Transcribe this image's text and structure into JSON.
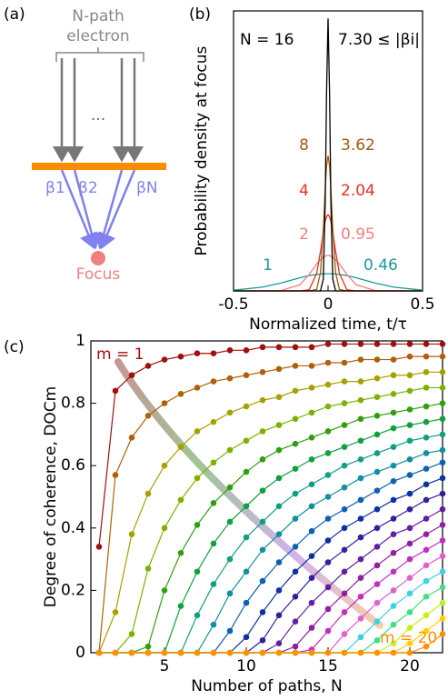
{
  "panel_a": {
    "label": "(a)",
    "title_line1": "N-path",
    "title_line2": "electron",
    "dots": "···",
    "betas": [
      "β1",
      "β2",
      "βN"
    ],
    "focus": "Focus"
  },
  "chart_data": [
    {
      "type": "line",
      "panel_label": "(b)",
      "y_label": "Probability density at focus",
      "x_label": "Normalized time, t/τ",
      "xlim": [
        -0.5,
        0.5
      ],
      "xticks": [
        -0.5,
        0,
        0.5
      ],
      "ylim": [
        0,
        7.5
      ],
      "x": [
        -0.5,
        -0.35,
        -0.25,
        -0.15,
        -0.1,
        -0.06,
        -0.04,
        -0.025,
        -0.015,
        -0.008,
        0,
        0.008,
        0.015,
        0.025,
        0.04,
        0.06,
        0.1,
        0.15,
        0.25,
        0.35,
        0.5
      ],
      "series": [
        {
          "name": "1",
          "annotation": "0.46",
          "color": "#1a9a9a",
          "values": [
            0.02,
            0.1,
            0.21,
            0.35,
            0.41,
            0.44,
            0.45,
            0.46,
            0.46,
            0.46,
            0.46,
            0.46,
            0.46,
            0.46,
            0.45,
            0.44,
            0.41,
            0.35,
            0.21,
            0.1,
            0.02
          ]
        },
        {
          "name": "2",
          "annotation": "0.95",
          "color": "#f08080",
          "values": [
            0,
            0,
            0.01,
            0.16,
            0.44,
            0.72,
            0.84,
            0.9,
            0.93,
            0.95,
            0.95,
            0.95,
            0.93,
            0.9,
            0.84,
            0.72,
            0.44,
            0.16,
            0.01,
            0,
            0
          ]
        },
        {
          "name": "4",
          "annotation": "2.04",
          "color": "#e83020",
          "values": [
            0,
            0,
            0,
            0,
            0.03,
            0.47,
            1.06,
            1.58,
            1.86,
            1.99,
            2.04,
            1.99,
            1.86,
            1.58,
            1.06,
            0.47,
            0.03,
            0,
            0,
            0,
            0
          ]
        },
        {
          "name": "8",
          "annotation": "3.62",
          "color": "#a05a10",
          "values": [
            0,
            0,
            0,
            0,
            0,
            0.04,
            0.49,
            1.66,
            2.73,
            3.34,
            3.62,
            3.34,
            2.73,
            1.66,
            0.49,
            0.04,
            0,
            0,
            0,
            0,
            0
          ]
        },
        {
          "name": "N = 16",
          "annotation": "7.30 ≤ |βi|",
          "color": "#000000",
          "values": [
            0,
            0,
            0,
            0,
            0,
            0,
            0,
            0.32,
            2.37,
            5.3,
            7.3,
            5.3,
            2.37,
            0.32,
            0,
            0,
            0,
            0,
            0,
            0,
            0
          ]
        }
      ]
    },
    {
      "type": "line",
      "panel_label": "(c)",
      "y_label": "Degree of coherence, DOCm",
      "x_label": "Number of paths, N",
      "annotations": [
        "m = 1",
        "m = 20"
      ],
      "xlim": [
        0.5,
        22
      ],
      "xticks": [
        5,
        10,
        15,
        20
      ],
      "ylim": [
        0,
        1
      ],
      "yticks": [
        0,
        0.2,
        0.4,
        0.6,
        0.8,
        1
      ],
      "x": [
        1,
        2,
        3,
        4,
        5,
        6,
        7,
        8,
        9,
        10,
        11,
        12,
        13,
        14,
        15,
        16,
        17,
        18,
        19,
        20,
        21,
        22
      ],
      "series": [
        {
          "color": "#a01010",
          "values": [
            0.34,
            0.84,
            0.89,
            0.92,
            0.94,
            0.95,
            0.96,
            0.96,
            0.97,
            0.97,
            0.98,
            0.98,
            0.98,
            0.98,
            0.99,
            0.99,
            0.99,
            0.99,
            0.99,
            0.99,
            0.99,
            0.99
          ]
        },
        {
          "color": "#b0600a",
          "values": [
            0,
            0.57,
            0.69,
            0.76,
            0.8,
            0.83,
            0.85,
            0.87,
            0.88,
            0.89,
            0.9,
            0.91,
            0.92,
            0.92,
            0.93,
            0.93,
            0.94,
            0.94,
            0.94,
            0.95,
            0.95,
            0.95
          ]
        },
        {
          "color": "#a8a000",
          "values": [
            0,
            0.13,
            0.38,
            0.51,
            0.6,
            0.66,
            0.71,
            0.74,
            0.77,
            0.79,
            0.81,
            0.82,
            0.84,
            0.85,
            0.86,
            0.87,
            0.87,
            0.88,
            0.89,
            0.89,
            0.9,
            0.9
          ]
        },
        {
          "color": "#7fb000",
          "values": [
            0,
            0,
            0.06,
            0.27,
            0.4,
            0.49,
            0.56,
            0.61,
            0.65,
            0.68,
            0.71,
            0.73,
            0.75,
            0.77,
            0.79,
            0.8,
            0.81,
            0.82,
            0.83,
            0.84,
            0.85,
            0.85
          ]
        },
        {
          "color": "#30a010",
          "values": [
            0,
            0,
            0,
            0.02,
            0.2,
            0.32,
            0.41,
            0.48,
            0.53,
            0.58,
            0.62,
            0.65,
            0.67,
            0.69,
            0.71,
            0.73,
            0.75,
            0.76,
            0.77,
            0.78,
            0.79,
            0.8
          ]
        },
        {
          "color": "#10a040",
          "values": [
            0,
            0,
            0,
            0,
            0,
            0.15,
            0.26,
            0.35,
            0.42,
            0.47,
            0.52,
            0.56,
            0.59,
            0.62,
            0.64,
            0.66,
            0.68,
            0.7,
            0.72,
            0.73,
            0.74,
            0.75
          ]
        },
        {
          "color": "#10a080",
          "values": [
            0,
            0,
            0,
            0,
            0,
            0,
            0.12,
            0.22,
            0.3,
            0.37,
            0.42,
            0.47,
            0.51,
            0.54,
            0.57,
            0.6,
            0.62,
            0.64,
            0.66,
            0.68,
            0.69,
            0.7
          ]
        },
        {
          "color": "#1090a0",
          "values": [
            0,
            0,
            0,
            0,
            0,
            0,
            0,
            0.09,
            0.19,
            0.26,
            0.33,
            0.38,
            0.43,
            0.47,
            0.5,
            0.53,
            0.56,
            0.58,
            0.6,
            0.62,
            0.64,
            0.65
          ]
        },
        {
          "color": "#1060b0",
          "values": [
            0,
            0,
            0,
            0,
            0,
            0,
            0,
            0,
            0.07,
            0.16,
            0.23,
            0.29,
            0.34,
            0.39,
            0.43,
            0.46,
            0.49,
            0.52,
            0.55,
            0.57,
            0.59,
            0.61
          ]
        },
        {
          "color": "#1030a0",
          "values": [
            0,
            0,
            0,
            0,
            0,
            0,
            0,
            0,
            0,
            0.05,
            0.13,
            0.2,
            0.26,
            0.31,
            0.36,
            0.4,
            0.43,
            0.46,
            0.49,
            0.51,
            0.54,
            0.56
          ]
        },
        {
          "color": "#3020a0",
          "values": [
            0,
            0,
            0,
            0,
            0,
            0,
            0,
            0,
            0,
            0,
            0.04,
            0.12,
            0.18,
            0.24,
            0.29,
            0.33,
            0.37,
            0.4,
            0.43,
            0.46,
            0.49,
            0.51
          ]
        },
        {
          "color": "#6020a0",
          "values": [
            0,
            0,
            0,
            0,
            0,
            0,
            0,
            0,
            0,
            0,
            0,
            0.03,
            0.1,
            0.16,
            0.21,
            0.26,
            0.3,
            0.34,
            0.38,
            0.4,
            0.43,
            0.46
          ]
        },
        {
          "color": "#9020a0",
          "values": [
            0,
            0,
            0,
            0,
            0,
            0,
            0,
            0,
            0,
            0,
            0,
            0,
            0.02,
            0.08,
            0.14,
            0.19,
            0.24,
            0.28,
            0.32,
            0.35,
            0.38,
            0.41
          ]
        },
        {
          "color": "#c030c0",
          "values": [
            0,
            0,
            0,
            0,
            0,
            0,
            0,
            0,
            0,
            0,
            0,
            0,
            0,
            0.01,
            0.07,
            0.13,
            0.18,
            0.22,
            0.26,
            0.3,
            0.33,
            0.36
          ]
        },
        {
          "color": "#e060d0",
          "values": [
            0,
            0,
            0,
            0,
            0,
            0,
            0,
            0,
            0,
            0,
            0,
            0,
            0,
            0,
            0,
            0.06,
            0.11,
            0.16,
            0.2,
            0.24,
            0.28,
            0.31
          ]
        },
        {
          "color": "#40d0e0",
          "values": [
            0,
            0,
            0,
            0,
            0,
            0,
            0,
            0,
            0,
            0,
            0,
            0,
            0,
            0,
            0,
            0,
            0.05,
            0.1,
            0.15,
            0.19,
            0.23,
            0.26
          ]
        },
        {
          "color": "#40e080",
          "values": [
            0,
            0,
            0,
            0,
            0,
            0,
            0,
            0,
            0,
            0,
            0,
            0,
            0,
            0,
            0,
            0,
            0,
            0.04,
            0.09,
            0.13,
            0.18,
            0.21
          ]
        },
        {
          "color": "#c0f020",
          "values": [
            0,
            0,
            0,
            0,
            0,
            0,
            0,
            0,
            0,
            0,
            0,
            0,
            0,
            0,
            0,
            0,
            0,
            0,
            0.03,
            0.08,
            0.12,
            0.16
          ]
        },
        {
          "color": "#ffd000",
          "values": [
            0,
            0,
            0,
            0,
            0,
            0,
            0,
            0,
            0,
            0,
            0,
            0,
            0,
            0,
            0,
            0,
            0,
            0,
            0,
            0.03,
            0.07,
            0.11
          ]
        },
        {
          "color": "#ff9000",
          "values": [
            0,
            0,
            0,
            0,
            0,
            0,
            0,
            0,
            0,
            0,
            0,
            0,
            0,
            0,
            0,
            0,
            0,
            0,
            0,
            0,
            0.02,
            0.06
          ]
        }
      ]
    }
  ]
}
